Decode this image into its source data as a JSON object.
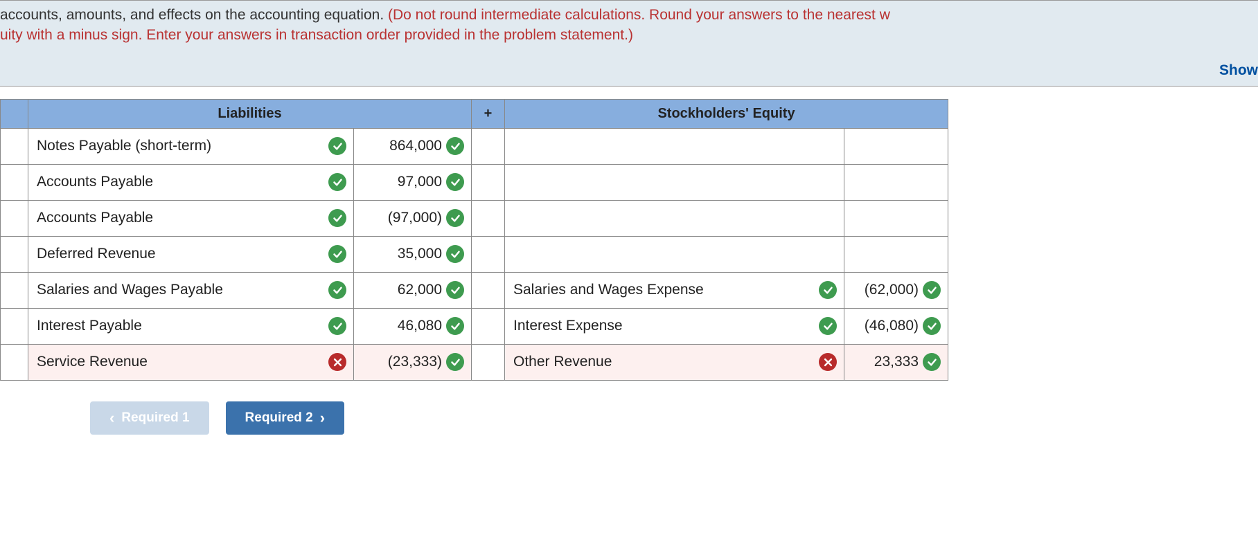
{
  "instructions": {
    "line1_black": " accounts, amounts, and effects on the accounting equation. ",
    "line1_red": "(Do not round intermediate calculations. Round your answers to the nearest w",
    "line2_red": "uity with a minus sign. Enter your answers in transaction order provided in the problem statement.)",
    "show_link": "Show"
  },
  "headers": {
    "liabilities": "Liabilities",
    "plus": "+",
    "equity": "Stockholders' Equity"
  },
  "rows": [
    {
      "liab_account": "Notes Payable (short-term)",
      "liab_account_status": "check",
      "liab_amount": "864,000",
      "liab_amount_status": "check",
      "eq_account": "",
      "eq_account_status": "",
      "eq_amount": "",
      "eq_amount_status": "",
      "liab_wrong": false,
      "eq_wrong": false
    },
    {
      "liab_account": "Accounts Payable",
      "liab_account_status": "check",
      "liab_amount": "97,000",
      "liab_amount_status": "check",
      "eq_account": "",
      "eq_account_status": "",
      "eq_amount": "",
      "eq_amount_status": "",
      "liab_wrong": false,
      "eq_wrong": false
    },
    {
      "liab_account": "Accounts Payable",
      "liab_account_status": "check",
      "liab_amount": "(97,000)",
      "liab_amount_status": "check",
      "eq_account": "",
      "eq_account_status": "",
      "eq_amount": "",
      "eq_amount_status": "",
      "liab_wrong": false,
      "eq_wrong": false
    },
    {
      "liab_account": "Deferred Revenue",
      "liab_account_status": "check",
      "liab_amount": "35,000",
      "liab_amount_status": "check",
      "eq_account": "",
      "eq_account_status": "",
      "eq_amount": "",
      "eq_amount_status": "",
      "liab_wrong": false,
      "eq_wrong": false
    },
    {
      "liab_account": "Salaries and Wages Payable",
      "liab_account_status": "check",
      "liab_amount": "62,000",
      "liab_amount_status": "check",
      "eq_account": "Salaries and Wages Expense",
      "eq_account_status": "check",
      "eq_amount": "(62,000)",
      "eq_amount_status": "check",
      "liab_wrong": false,
      "eq_wrong": false
    },
    {
      "liab_account": "Interest Payable",
      "liab_account_status": "check",
      "liab_amount": "46,080",
      "liab_amount_status": "check",
      "eq_account": "Interest Expense",
      "eq_account_status": "check",
      "eq_amount": "(46,080)",
      "eq_amount_status": "check",
      "liab_wrong": false,
      "eq_wrong": false
    },
    {
      "liab_account": "Service Revenue",
      "liab_account_status": "x",
      "liab_amount": "(23,333)",
      "liab_amount_status": "check",
      "eq_account": "Other Revenue",
      "eq_account_status": "x",
      "eq_amount": "23,333",
      "eq_amount_status": "check",
      "liab_wrong": true,
      "eq_wrong": true
    }
  ],
  "col_widths": {
    "stub": 40,
    "liab_account": 470,
    "liab_amount": 170,
    "plus": 48,
    "eq_account": 490,
    "eq_amount": 150
  },
  "nav": {
    "prev_label": "Required 1",
    "next_label": "Required 2"
  },
  "colors": {
    "header_bg": "#87aede",
    "wrong_bg": "#fdf0ef",
    "check_bg": "#3e9b4f",
    "x_bg": "#b82b2b",
    "red_text": "#b93232",
    "blue_link": "#0050a0",
    "btn_prev_bg": "#c9d8e8",
    "btn_next_bg": "#3b72ac"
  }
}
